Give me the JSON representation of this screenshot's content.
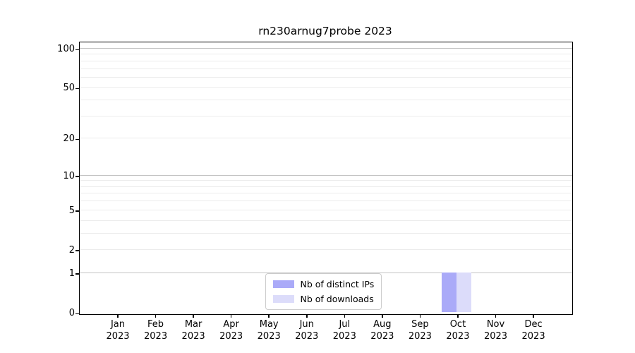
{
  "chart_data": {
    "type": "bar",
    "title": "rn230arnug7probe 2023",
    "x_tick_year": "2023",
    "categories": [
      "Jan",
      "Feb",
      "Mar",
      "Apr",
      "May",
      "Jun",
      "Jul",
      "Aug",
      "Sep",
      "Oct",
      "Nov",
      "Dec"
    ],
    "series": [
      {
        "name": "Nb of distinct IPs",
        "color": "#aaaaf8",
        "values": [
          0,
          0,
          0,
          0,
          0,
          0,
          0,
          0,
          0,
          1,
          0,
          0
        ]
      },
      {
        "name": "Nb of downloads",
        "color": "#dcdcfa",
        "values": [
          0,
          0,
          0,
          0,
          0,
          0,
          0,
          0,
          0,
          1,
          0,
          0
        ]
      }
    ],
    "y_axis": {
      "scale": "log1p",
      "ylim": [
        0,
        114
      ],
      "tick_values": [
        100,
        50,
        20,
        10,
        5,
        2,
        1,
        0
      ],
      "tick_labels": [
        "100",
        "50",
        "20",
        "10",
        "5",
        "2",
        "1",
        "0"
      ],
      "major_grid_values": [
        100,
        10,
        1
      ],
      "minor_grid_values": [
        90,
        80,
        70,
        60,
        50,
        40,
        30,
        20,
        9,
        8,
        7,
        6,
        5,
        4,
        3,
        2
      ]
    },
    "legend_position": "lower center",
    "colors": {
      "grid_major": "#c3c3c3",
      "grid_minor": "#ececec",
      "axis": "#000000",
      "background": "#ffffff"
    }
  }
}
